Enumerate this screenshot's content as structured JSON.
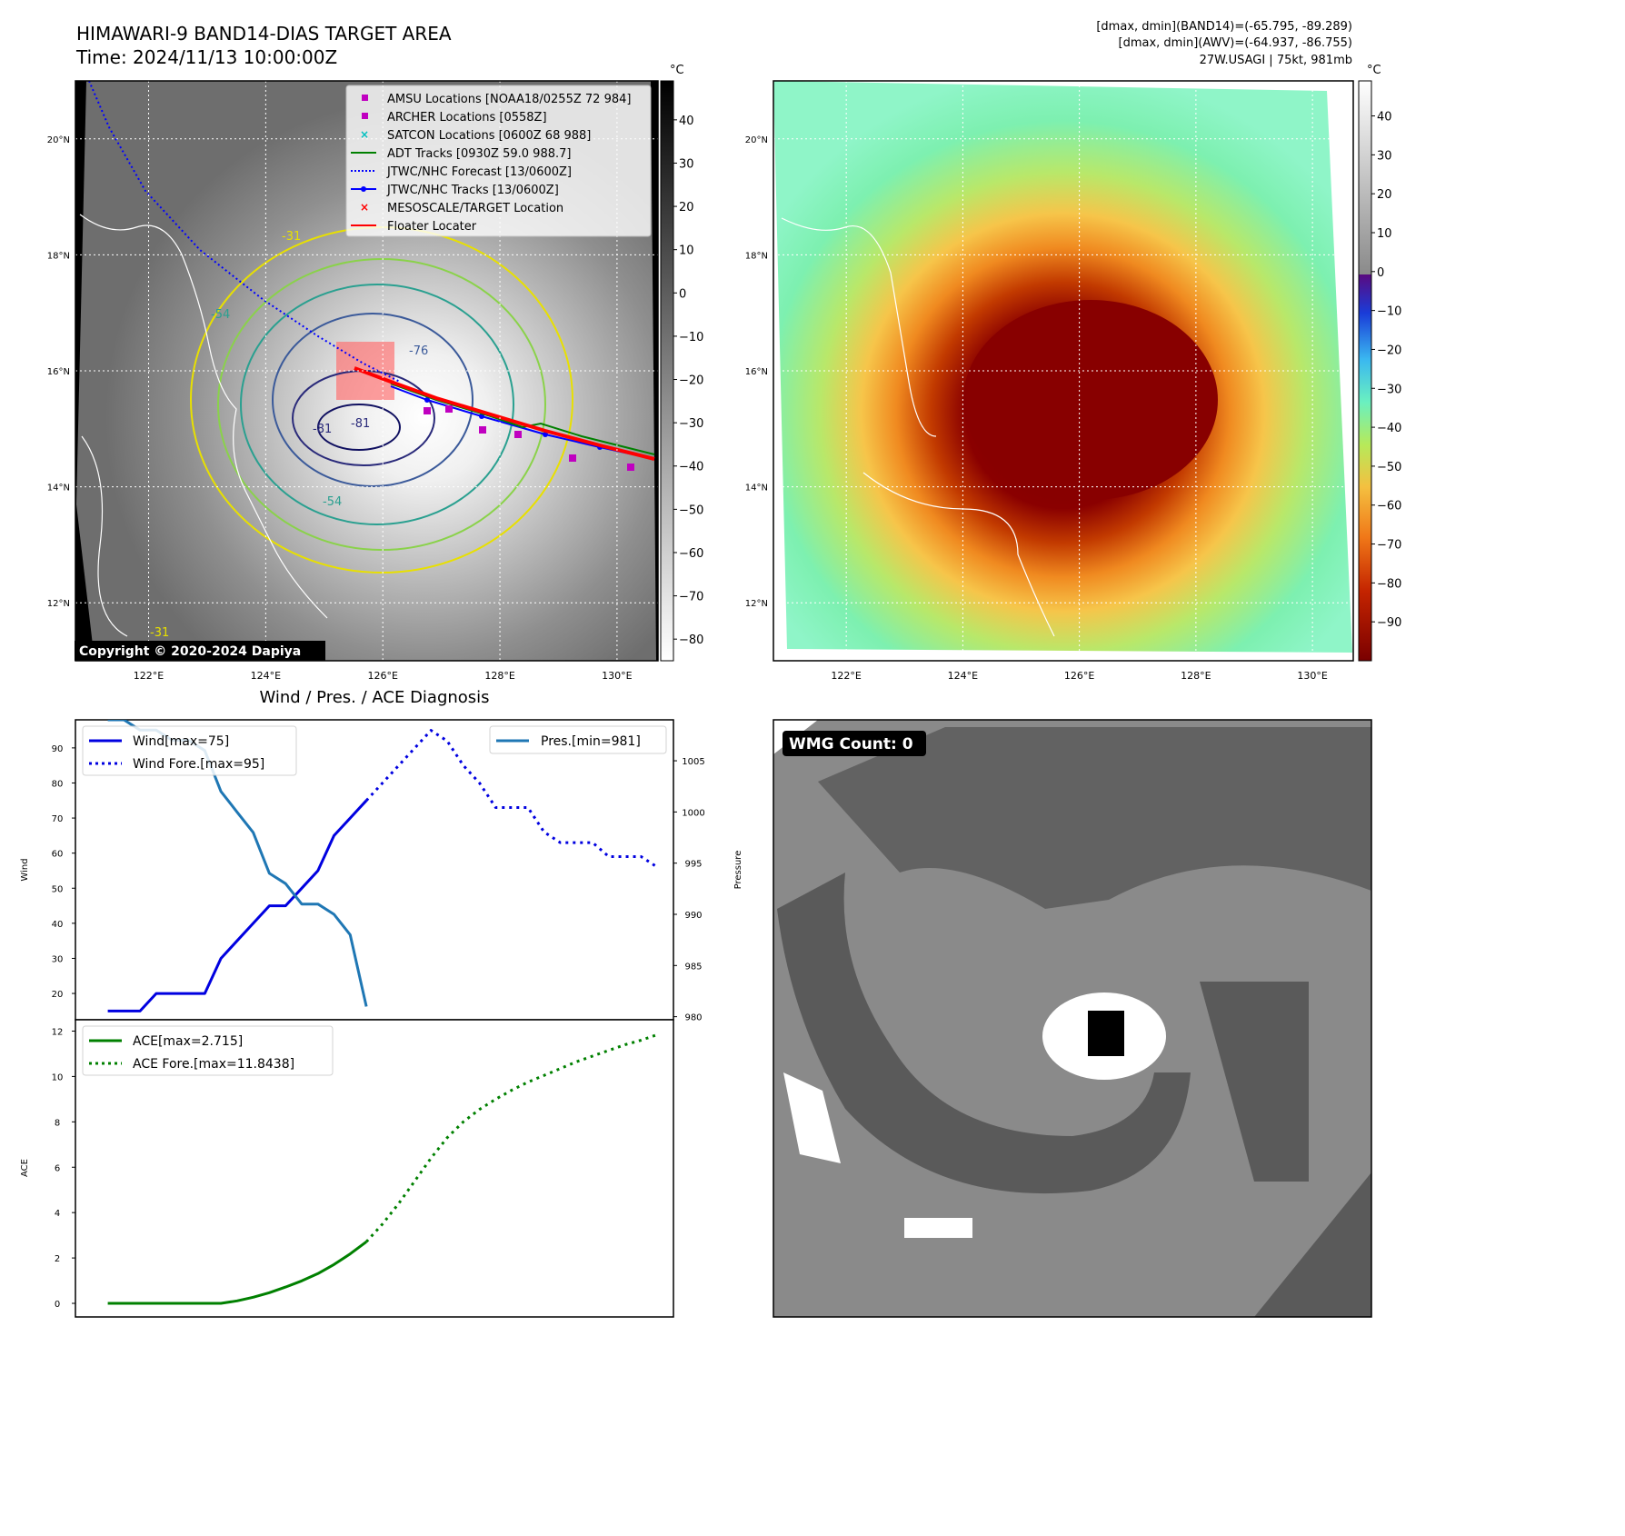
{
  "header": {
    "title": "HIMAWARI-9 BAND14-DIAS TARGET AREA",
    "time": "Time: 2024/11/13 10:00:00Z",
    "stats_band14": "[dmax, dmin](BAND14)=(-65.795, -89.289)",
    "stats_awv": "[dmax, dmin](AWV)=(-64.937, -86.755)",
    "storm_info": "27W.USAGI | 75kt, 981mb"
  },
  "map": {
    "lon_ticks": [
      "122°E",
      "124°E",
      "126°E",
      "128°E",
      "130°E"
    ],
    "lat_ticks": [
      "20°N",
      "18°N",
      "16°N",
      "14°N",
      "12°N"
    ],
    "lon_values": [
      122,
      124,
      126,
      128,
      130
    ],
    "lat_values": [
      20,
      18,
      16,
      14,
      12
    ],
    "lon_range": [
      120.75,
      130.7
    ],
    "lat_range": [
      11.0,
      21.0
    ],
    "contour_labels": [
      "-31",
      "-76",
      "-81",
      "-81",
      "-54",
      "-54",
      "-31"
    ],
    "copyright": "Copyright © 2020-2024 Dapiya"
  },
  "legend": {
    "items": [
      {
        "label": "AMSU Locations [NOAA18/0255Z 72 984]",
        "color": "#c000c0",
        "marker": "square"
      },
      {
        "label": "ARCHER Locations [0558Z]",
        "color": "#c000c0",
        "marker": "square"
      },
      {
        "label": "SATCON Locations [0600Z 68 988]",
        "color": "#00c0c0",
        "marker": "x"
      },
      {
        "label": "ADT Tracks [0930Z 59.0 988.7]",
        "color": "#008000",
        "marker": "line"
      },
      {
        "label": "JTWC/NHC Forecast [13/0600Z]",
        "color": "#0000ff",
        "marker": "dotted"
      },
      {
        "label": "JTWC/NHC Tracks [13/0600Z]",
        "color": "#0000ff",
        "marker": "line-dot"
      },
      {
        "label": "MESOSCALE/TARGET Location",
        "color": "#ff0000",
        "marker": "x"
      },
      {
        "label": "Floater Locater",
        "color": "#ff0000",
        "marker": "line"
      }
    ]
  },
  "colorbar_gray": {
    "unit": "°C",
    "ticks": [
      "40",
      "30",
      "20",
      "10",
      "0",
      "−10",
      "−20",
      "−30",
      "−40",
      "−50",
      "−60",
      "−70",
      "−80"
    ],
    "values": [
      40,
      30,
      20,
      10,
      0,
      -10,
      -20,
      -30,
      -40,
      -50,
      -60,
      -70,
      -80
    ],
    "range": [
      -85,
      49
    ]
  },
  "colorbar_color": {
    "unit": "°C",
    "ticks": [
      "40",
      "30",
      "20",
      "10",
      "0",
      "−10",
      "−20",
      "−30",
      "−40",
      "−50",
      "−60",
      "−70",
      "−80",
      "−90"
    ],
    "values": [
      40,
      30,
      20,
      10,
      0,
      -10,
      -20,
      -30,
      -40,
      -50,
      -60,
      -70,
      -80,
      -90
    ],
    "range": [
      -100,
      49
    ]
  },
  "wmg": {
    "badge": "WMG Count: 0"
  },
  "chart_data": [
    {
      "type": "line",
      "title": "Wind / Pres. / ACE Diagnosis",
      "panel": "wind-pressure",
      "xlim": [
        -1,
        36
      ],
      "ylabel": "Wind",
      "ylabel2": "Pressure",
      "ylim": [
        12.5,
        98
      ],
      "ylim2": [
        979.7,
        1009
      ],
      "yticks": [
        20,
        30,
        40,
        50,
        60,
        70,
        80,
        90
      ],
      "yticks2": [
        980,
        985,
        990,
        995,
        1000,
        1005
      ],
      "series": [
        {
          "name": "Wind[max=75]",
          "axis": "left",
          "style": "solid",
          "color": "#0000e0",
          "x": [
            1,
            2,
            3,
            4,
            5,
            6,
            7,
            8,
            9,
            10,
            11,
            12,
            13,
            14,
            15,
            16,
            17
          ],
          "values": [
            15,
            15,
            15,
            20,
            20,
            20,
            20,
            30,
            35,
            40,
            45,
            45,
            50,
            55,
            65,
            70,
            75
          ]
        },
        {
          "name": "Wind Fore.[max=95]",
          "axis": "left",
          "style": "dotted",
          "color": "#0000e0",
          "x": [
            17,
            18,
            19,
            20,
            21,
            22,
            23,
            24,
            25,
            26,
            27,
            28,
            29,
            30,
            31,
            32,
            33,
            34,
            35
          ],
          "values": [
            75,
            80,
            85,
            90,
            95,
            92,
            85,
            80,
            73,
            73,
            73,
            66,
            63,
            63,
            63,
            59,
            59,
            59,
            56
          ]
        },
        {
          "name": "Pres.[min=981]",
          "axis": "right",
          "style": "solid",
          "color": "#1f77b4",
          "x": [
            1,
            2,
            3,
            4,
            5,
            6,
            7,
            8,
            9,
            10,
            11,
            12,
            13,
            14,
            15,
            16,
            17
          ],
          "values": [
            1009,
            1009,
            1008,
            1008,
            1007,
            1007,
            1006,
            1002,
            1000,
            998,
            994,
            993,
            991,
            991,
            990,
            988,
            981
          ]
        }
      ],
      "legend": [
        "Wind[max=75]",
        "Wind Fore.[max=95]",
        "Pres.[min=981]"
      ]
    },
    {
      "type": "line",
      "panel": "ace",
      "xlim": [
        -1,
        36
      ],
      "ylabel": "ACE",
      "ylim": [
        -0.6,
        12.5
      ],
      "yticks": [
        0,
        2,
        4,
        6,
        8,
        10,
        12
      ],
      "series": [
        {
          "name": "ACE[max=2.715]",
          "style": "solid",
          "color": "#008000",
          "x": [
            1,
            2,
            3,
            4,
            5,
            6,
            7,
            8,
            9,
            10,
            11,
            12,
            13,
            14,
            15,
            16,
            17
          ],
          "values": [
            0,
            0,
            0,
            0,
            0,
            0,
            0,
            0,
            0.11,
            0.27,
            0.47,
            0.72,
            0.99,
            1.31,
            1.71,
            2.18,
            2.715
          ]
        },
        {
          "name": "ACE Fore.[max=11.8438]",
          "style": "dotted",
          "color": "#008000",
          "x": [
            17,
            18,
            19,
            20,
            21,
            22,
            23,
            24,
            25,
            26,
            27,
            28,
            29,
            30,
            31,
            32,
            33,
            34,
            35
          ],
          "values": [
            2.715,
            3.5,
            4.4,
            5.4,
            6.4,
            7.3,
            8.0,
            8.55,
            9.0,
            9.4,
            9.75,
            10.05,
            10.35,
            10.65,
            10.9,
            11.15,
            11.4,
            11.6,
            11.8438
          ]
        }
      ],
      "legend": [
        "ACE[max=2.715]",
        "ACE Fore.[max=11.8438]"
      ]
    }
  ]
}
